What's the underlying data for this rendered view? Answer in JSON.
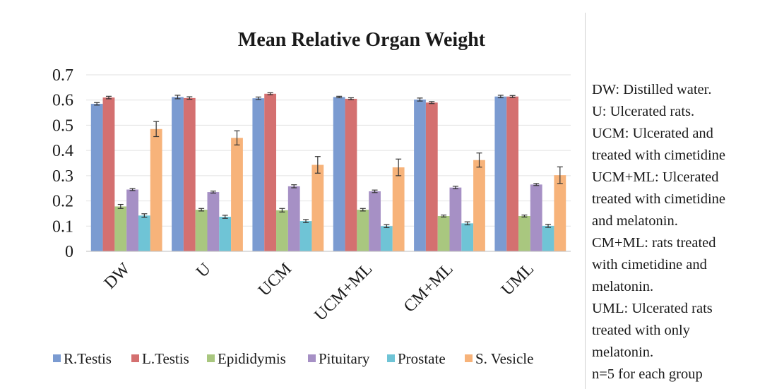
{
  "chart_data": {
    "type": "bar",
    "title": "Mean Relative Organ Weight",
    "categories": [
      "DW",
      "U",
      "UCM",
      "UCM+ML",
      "CM+ML",
      "UML"
    ],
    "ylim": [
      0,
      0.7
    ],
    "yticks": [
      "0",
      "0.1",
      "0.2",
      "0.3",
      "0.4",
      "0.5",
      "0.6",
      "0.7"
    ],
    "grid": true,
    "legend_position": "bottom",
    "series": [
      {
        "name": "R.Testis",
        "color": "#7b9bd1",
        "values": [
          0.585,
          0.612,
          0.607,
          0.612,
          0.602,
          0.614
        ],
        "errors": [
          0.005,
          0.007,
          0.005,
          0.003,
          0.006,
          0.005
        ]
      },
      {
        "name": "L.Testis",
        "color": "#d47070",
        "values": [
          0.61,
          0.608,
          0.625,
          0.605,
          0.59,
          0.614
        ],
        "errors": [
          0.005,
          0.005,
          0.004,
          0.004,
          0.004,
          0.004
        ]
      },
      {
        "name": "Epididymis",
        "color": "#a9c77f",
        "values": [
          0.178,
          0.165,
          0.163,
          0.165,
          0.14,
          0.14
        ],
        "errors": [
          0.008,
          0.005,
          0.007,
          0.005,
          0.004,
          0.004
        ]
      },
      {
        "name": "Pituitary",
        "color": "#a690c5",
        "values": [
          0.245,
          0.235,
          0.258,
          0.238,
          0.253,
          0.265
        ],
        "errors": [
          0.004,
          0.004,
          0.006,
          0.005,
          0.005,
          0.004
        ]
      },
      {
        "name": "Prostate",
        "color": "#6fc4d6",
        "values": [
          0.142,
          0.137,
          0.12,
          0.1,
          0.111,
          0.101
        ],
        "errors": [
          0.007,
          0.006,
          0.006,
          0.006,
          0.006,
          0.006
        ]
      },
      {
        "name": "S. Vesicle",
        "color": "#f7b37a",
        "values": [
          0.485,
          0.45,
          0.343,
          0.333,
          0.362,
          0.302
        ],
        "errors": [
          0.03,
          0.028,
          0.033,
          0.033,
          0.028,
          0.033
        ]
      }
    ]
  },
  "notes": [
    {
      "lines": [
        "DW: Distilled water."
      ]
    },
    {
      "lines": [
        "U: Ulcerated rats."
      ]
    },
    {
      "lines": [
        "UCM: Ulcerated and",
        "treated with cimetidine"
      ]
    },
    {
      "lines": [
        "UCM+ML:  Ulcerated",
        "treated with cimetidine",
        "and melatonin."
      ]
    },
    {
      "lines": [
        "CM+ML: rats treated",
        "with cimetidine and",
        "melatonin."
      ]
    },
    {
      "lines": [
        "UML: Ulcerated rats",
        "treated with only",
        "melatonin."
      ]
    },
    {
      "lines": [
        "n=5 for each group"
      ]
    }
  ]
}
